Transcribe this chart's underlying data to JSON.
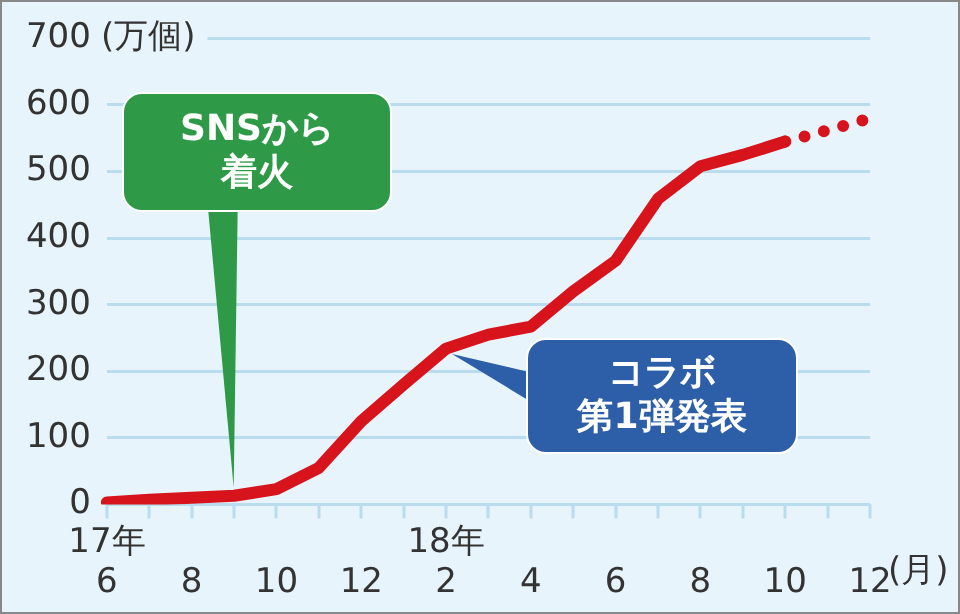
{
  "chart_data": {
    "type": "line",
    "ylabel": "(万個)",
    "xlabel": "(月)",
    "categories": [
      "17年\n6",
      null,
      "8",
      null,
      "10",
      null,
      "12",
      null,
      "18年\n2",
      null,
      "4",
      null,
      "6",
      null,
      "8",
      null,
      "10",
      null,
      "12"
    ],
    "series": [
      {
        "color": "#d7141c",
        "line_style": "solid",
        "values": [
          3,
          7,
          10,
          13,
          23,
          55,
          125,
          180,
          234,
          255,
          267,
          320,
          366,
          459,
          508,
          525,
          545,
          null,
          null
        ]
      },
      {
        "color": "#d7141c",
        "line_style": "dotted",
        "values": [
          null,
          null,
          null,
          null,
          null,
          null,
          null,
          null,
          null,
          null,
          null,
          null,
          null,
          null,
          null,
          null,
          545,
          562,
          580
        ]
      }
    ],
    "ylim": [
      0,
      700
    ],
    "yticks": [
      0,
      100,
      200,
      300,
      400,
      500,
      600,
      700
    ],
    "grid": "y",
    "legend": false,
    "marker": "none",
    "annotations": [
      "SNSから着火",
      "コラボ第1弾発表"
    ]
  }
}
